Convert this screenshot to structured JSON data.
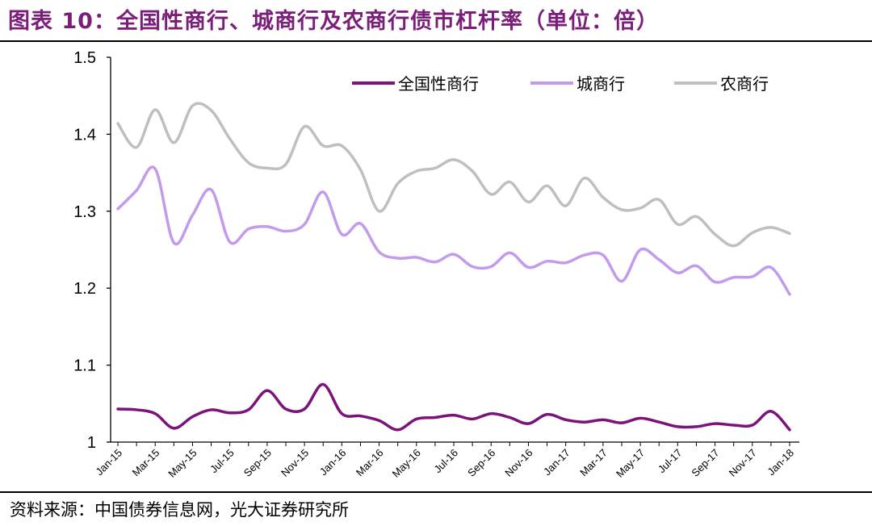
{
  "header": {
    "title": "图表 10：全国性商行、城商行及农商行债市杠杆率（单位：倍）"
  },
  "footer": {
    "source": "资料来源：中国债券信息网，光大证券研究所"
  },
  "chart_data": {
    "type": "line",
    "title": "图表 10：全国性商行、城商行及农商行债市杠杆率（单位：倍）",
    "xlabel": "",
    "ylabel": "",
    "ylim": [
      1.0,
      1.5
    ],
    "yticks": [
      "1",
      "1.1",
      "1.2",
      "1.3",
      "1.4",
      "1.5"
    ],
    "grid": false,
    "legend_position": "top-right",
    "x": [
      "Jan-15",
      "Feb-15",
      "Mar-15",
      "Apr-15",
      "May-15",
      "Jun-15",
      "Jul-15",
      "Aug-15",
      "Sep-15",
      "Oct-15",
      "Nov-15",
      "Dec-15",
      "Jan-16",
      "Feb-16",
      "Mar-16",
      "Apr-16",
      "May-16",
      "Jun-16",
      "Jul-16",
      "Aug-16",
      "Sep-16",
      "Oct-16",
      "Nov-16",
      "Dec-16",
      "Jan-17",
      "Feb-17",
      "Mar-17",
      "Apr-17",
      "May-17",
      "Jun-17",
      "Jul-17",
      "Aug-17",
      "Sep-17",
      "Oct-17",
      "Nov-17",
      "Dec-17",
      "Jan-18"
    ],
    "x_tick_labels": [
      "Jan-15",
      "Mar-15",
      "May-15",
      "Jul-15",
      "Sep-15",
      "Nov-15",
      "Jan-16",
      "Mar-16",
      "May-16",
      "Jul-16",
      "Sep-16",
      "Nov-16",
      "Jan-17",
      "Mar-17",
      "May-17",
      "Jul-17",
      "Sep-17",
      "Nov-17",
      "Jan-18"
    ],
    "series": [
      {
        "name": "全国性商行",
        "color": "#7B137A",
        "values": [
          1.043,
          1.042,
          1.037,
          1.018,
          1.033,
          1.042,
          1.038,
          1.042,
          1.067,
          1.043,
          1.043,
          1.075,
          1.037,
          1.034,
          1.028,
          1.016,
          1.03,
          1.032,
          1.035,
          1.03,
          1.037,
          1.032,
          1.024,
          1.036,
          1.029,
          1.026,
          1.029,
          1.025,
          1.031,
          1.026,
          1.02,
          1.02,
          1.024,
          1.022,
          1.022,
          1.04,
          1.016
        ]
      },
      {
        "name": "城商行",
        "color": "#C39BEC",
        "values": [
          1.303,
          1.327,
          1.355,
          1.259,
          1.295,
          1.328,
          1.26,
          1.277,
          1.28,
          1.274,
          1.283,
          1.325,
          1.27,
          1.284,
          1.247,
          1.239,
          1.24,
          1.234,
          1.244,
          1.228,
          1.228,
          1.246,
          1.227,
          1.235,
          1.233,
          1.243,
          1.243,
          1.209,
          1.25,
          1.237,
          1.22,
          1.229,
          1.208,
          1.214,
          1.215,
          1.227,
          1.192
        ]
      },
      {
        "name": "农商行",
        "color": "#BFBFBF",
        "values": [
          1.414,
          1.383,
          1.432,
          1.389,
          1.437,
          1.431,
          1.394,
          1.363,
          1.356,
          1.361,
          1.41,
          1.385,
          1.385,
          1.354,
          1.3,
          1.336,
          1.352,
          1.356,
          1.367,
          1.352,
          1.322,
          1.338,
          1.312,
          1.333,
          1.307,
          1.343,
          1.318,
          1.302,
          1.304,
          1.315,
          1.283,
          1.293,
          1.27,
          1.255,
          1.272,
          1.279,
          1.271
        ]
      }
    ]
  }
}
